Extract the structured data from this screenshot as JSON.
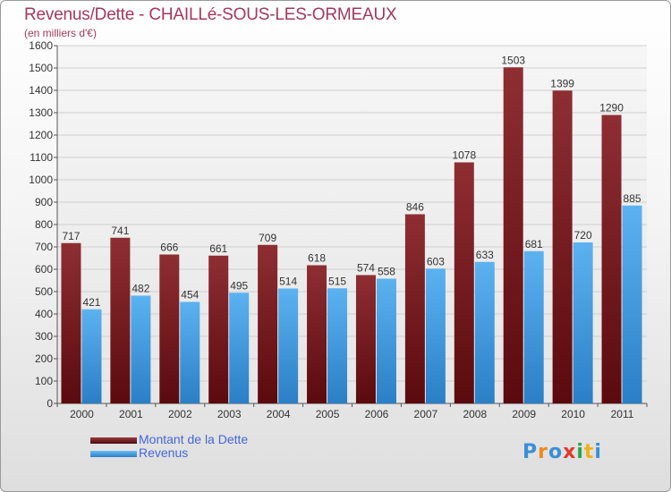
{
  "chart_data": {
    "type": "bar",
    "title": "Revenus/Dette - CHAILLé-SOUS-LES-ORMEAUX",
    "subtitle": "(en milliers d'€)",
    "categories": [
      "2000",
      "2001",
      "2002",
      "2003",
      "2004",
      "2005",
      "2006",
      "2007",
      "2008",
      "2009",
      "2010",
      "2011"
    ],
    "series": [
      {
        "name": "Montant de la Dette",
        "values": [
          717,
          741,
          666,
          661,
          709,
          618,
          574,
          846,
          1078,
          1503,
          1399,
          1290
        ],
        "color": "#7a1e22"
      },
      {
        "name": "Revenus",
        "values": [
          421,
          482,
          454,
          495,
          514,
          515,
          558,
          603,
          633,
          681,
          720,
          885
        ],
        "color": "#4ba3e8"
      }
    ],
    "ylim": [
      0,
      1600
    ],
    "yticks": [
      0,
      100,
      200,
      300,
      400,
      500,
      600,
      700,
      800,
      900,
      1000,
      1100,
      1200,
      1300,
      1400,
      1500,
      1600
    ],
    "grid": true,
    "legend_position": "bottom-left"
  },
  "logo": {
    "text": "Proxiti",
    "letters": [
      "P",
      "r",
      "o",
      "x",
      "i",
      "t",
      "i"
    ],
    "colors": [
      "#3a8fd8",
      "#f08a1c",
      "#3a8fd8",
      "#e23a2a",
      "#2aa44a",
      "#f0b21c",
      "#3a8fd8"
    ]
  }
}
